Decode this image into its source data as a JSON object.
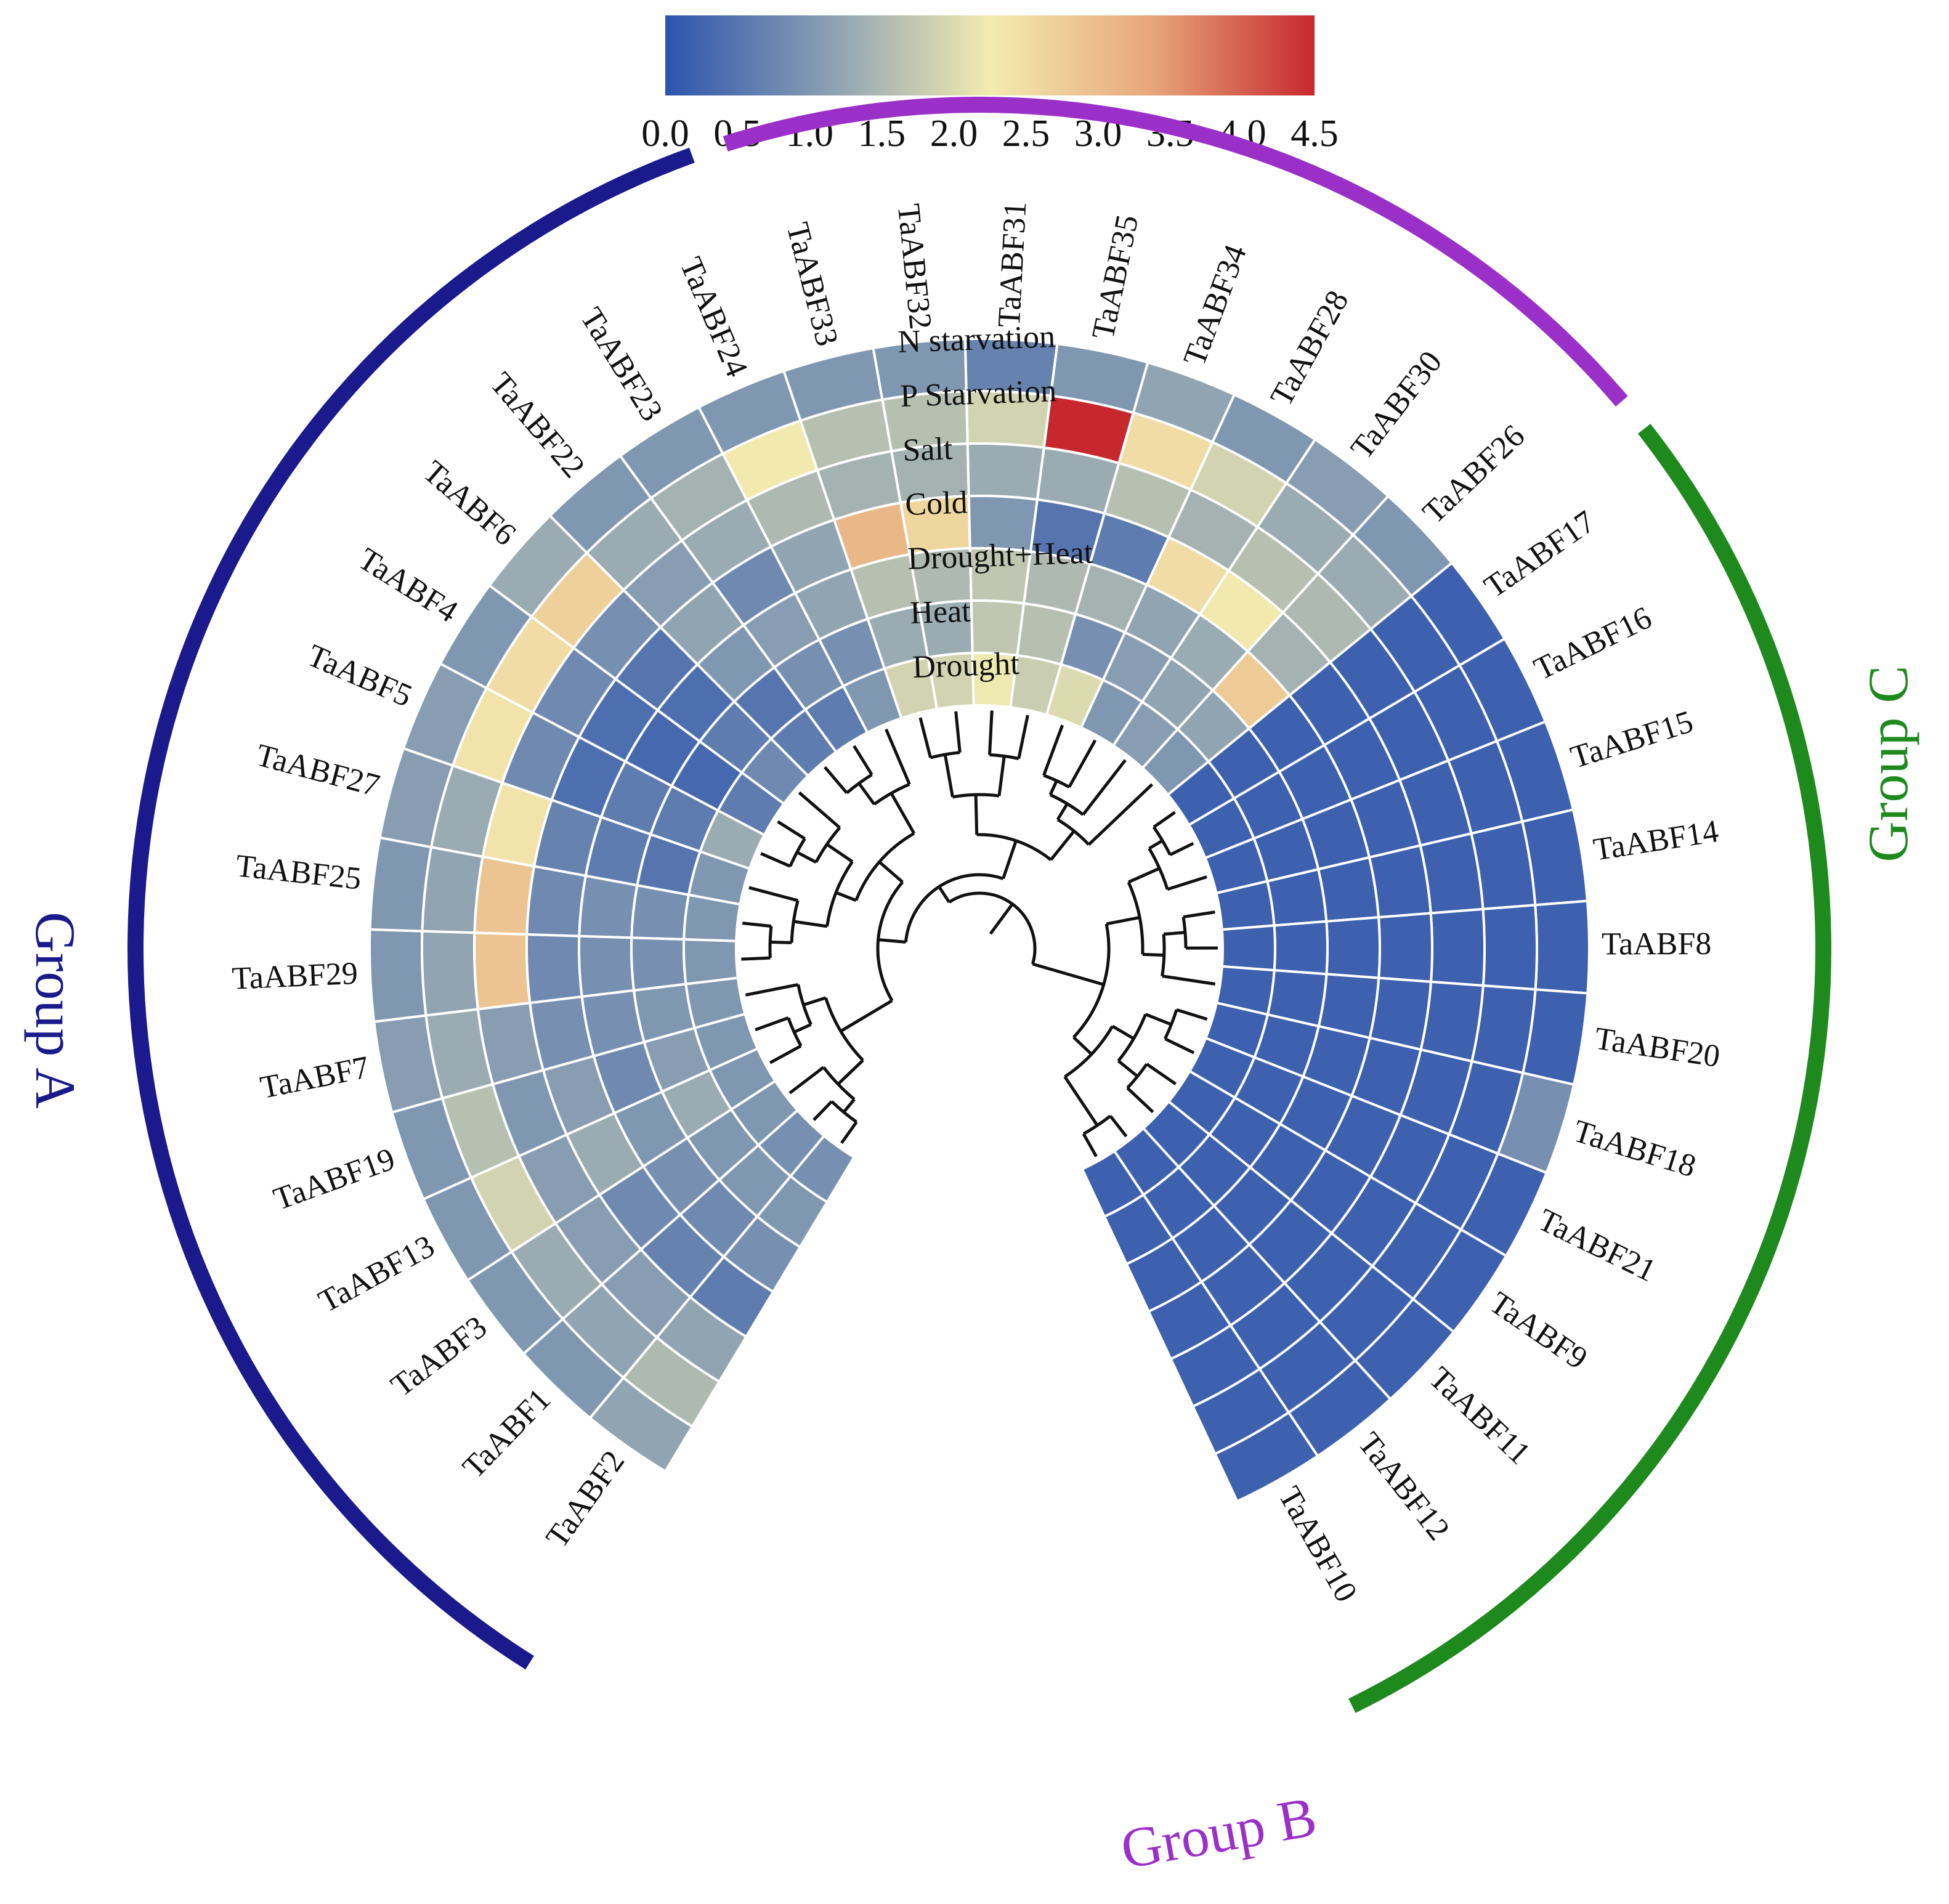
{
  "chart_data": {
    "type": "heatmap",
    "layout": "circular",
    "colorbar": {
      "min": 0.0,
      "max": 4.5,
      "ticks": [
        "0.0",
        "0.5",
        "1.0",
        "1.5",
        "2.0",
        "2.5",
        "3.0",
        "3.5",
        "4.0",
        "4.5"
      ],
      "colors": [
        "#2c54ad",
        "#8a9fb2",
        "#f3ecb0",
        "#e7a67a",
        "#c7282e"
      ]
    },
    "conditions": [
      "N starvation",
      "P Starvation",
      "Salt",
      "Cold",
      "Drought+Heat",
      "Heat",
      "Drought"
    ],
    "genes": [
      {
        "name": "TaABF2",
        "group": "A",
        "values": [
          1.2,
          1.5,
          1.2,
          0.6,
          0.9,
          1.0,
          0.9
        ]
      },
      {
        "name": "TaABF1",
        "group": "A",
        "values": [
          1.0,
          1.2,
          1.1,
          0.7,
          0.8,
          1.0,
          0.9
        ]
      },
      {
        "name": "TaABF3",
        "group": "A",
        "values": [
          1.0,
          1.3,
          1.1,
          0.8,
          0.9,
          1.0,
          1.0
        ]
      },
      {
        "name": "TaABF13",
        "group": "A",
        "values": [
          1.0,
          1.9,
          1.1,
          1.3,
          1.0,
          1.3,
          1.0
        ]
      },
      {
        "name": "TaABF19",
        "group": "A",
        "values": [
          1.0,
          1.6,
          1.0,
          1.1,
          0.8,
          1.1,
          1.0
        ]
      },
      {
        "name": "TaABF7",
        "group": "A",
        "values": [
          1.1,
          1.3,
          1.1,
          0.9,
          0.9,
          1.0,
          1.0
        ]
      },
      {
        "name": "TaABF29",
        "group": "A",
        "values": [
          1.0,
          1.2,
          2.9,
          0.8,
          0.9,
          0.9,
          1.0
        ]
      },
      {
        "name": "TaABF25",
        "group": "A",
        "values": [
          1.0,
          1.2,
          2.9,
          0.8,
          0.9,
          0.9,
          1.0
        ]
      },
      {
        "name": "TaABF27",
        "group": "A",
        "values": [
          1.1,
          1.3,
          2.4,
          0.7,
          0.6,
          0.5,
          1.0
        ]
      },
      {
        "name": "TaABF5",
        "group": "A",
        "values": [
          1.1,
          2.4,
          0.8,
          0.4,
          0.6,
          0.6,
          1.3
        ]
      },
      {
        "name": "TaABF4",
        "group": "A",
        "values": [
          1.0,
          2.5,
          0.8,
          0.4,
          0.3,
          0.3,
          0.6
        ]
      },
      {
        "name": "TaABF6",
        "group": "A",
        "values": [
          1.3,
          2.7,
          0.9,
          0.5,
          0.4,
          0.6,
          0.8
        ]
      },
      {
        "name": "TaABF22",
        "group": "A",
        "values": [
          1.0,
          1.3,
          1.1,
          1.2,
          1.0,
          0.5,
          0.6
        ]
      },
      {
        "name": "TaABF23",
        "group": "A",
        "values": [
          1.0,
          1.4,
          1.3,
          0.8,
          1.1,
          0.9,
          0.6
        ]
      },
      {
        "name": "TaABF24",
        "group": "A",
        "values": [
          1.0,
          2.3,
          1.5,
          1.2,
          1.2,
          0.9,
          1.0
        ]
      },
      {
        "name": "TaABF33",
        "group": "B",
        "values": [
          1.0,
          1.6,
          1.4,
          3.1,
          1.6,
          1.3,
          1.9
        ]
      },
      {
        "name": "TaABF32",
        "group": "B",
        "values": [
          1.0,
          1.6,
          1.4,
          2.6,
          1.5,
          1.3,
          1.9
        ]
      },
      {
        "name": "TaABF31",
        "group": "B",
        "values": [
          0.7,
          1.9,
          1.3,
          1.0,
          1.7,
          1.7,
          2.2
        ]
      },
      {
        "name": "TaABF35",
        "group": "B",
        "values": [
          1.0,
          4.5,
          1.3,
          0.5,
          1.5,
          1.6,
          1.8
        ]
      },
      {
        "name": "TaABF34",
        "group": "B",
        "values": [
          1.2,
          2.5,
          1.6,
          0.6,
          1.4,
          0.9,
          2.0
        ]
      },
      {
        "name": "TaABF28",
        "group": "B",
        "values": [
          1.0,
          1.9,
          1.4,
          2.5,
          1.2,
          1.1,
          1.0
        ]
      },
      {
        "name": "TaABF30",
        "group": "B",
        "values": [
          1.1,
          1.3,
          1.6,
          2.3,
          1.3,
          1.2,
          1.1
        ]
      },
      {
        "name": "TaABF26",
        "group": "B",
        "values": [
          1.0,
          1.3,
          1.5,
          1.4,
          2.8,
          1.2,
          1.0
        ]
      },
      {
        "name": "TaABF17",
        "group": "C",
        "values": [
          0.2,
          0.2,
          0.2,
          0.2,
          0.2,
          0.2,
          0.2
        ]
      },
      {
        "name": "TaABF16",
        "group": "C",
        "values": [
          0.2,
          0.2,
          0.2,
          0.2,
          0.2,
          0.2,
          0.2
        ]
      },
      {
        "name": "TaABF15",
        "group": "C",
        "values": [
          0.2,
          0.2,
          0.2,
          0.2,
          0.2,
          0.2,
          0.2
        ]
      },
      {
        "name": "TaABF14",
        "group": "C",
        "values": [
          0.2,
          0.2,
          0.2,
          0.2,
          0.2,
          0.2,
          0.2
        ]
      },
      {
        "name": "TaABF8",
        "group": "C",
        "values": [
          0.2,
          0.2,
          0.2,
          0.2,
          0.2,
          0.2,
          0.2
        ]
      },
      {
        "name": "TaABF20",
        "group": "C",
        "values": [
          0.2,
          0.2,
          0.2,
          0.2,
          0.2,
          0.2,
          0.2
        ]
      },
      {
        "name": "TaABF18",
        "group": "C",
        "values": [
          0.9,
          0.2,
          0.2,
          0.2,
          0.2,
          0.2,
          0.2
        ]
      },
      {
        "name": "TaABF21",
        "group": "C",
        "values": [
          0.2,
          0.2,
          0.2,
          0.2,
          0.2,
          0.2,
          0.2
        ]
      },
      {
        "name": "TaABF9",
        "group": "C",
        "values": [
          0.2,
          0.2,
          0.2,
          0.2,
          0.2,
          0.2,
          0.2
        ]
      },
      {
        "name": "TaABF11",
        "group": "C",
        "values": [
          0.2,
          0.2,
          0.2,
          0.2,
          0.2,
          0.2,
          0.2
        ]
      },
      {
        "name": "TaABF12",
        "group": "C",
        "values": [
          0.2,
          0.2,
          0.2,
          0.2,
          0.2,
          0.2,
          0.2
        ]
      },
      {
        "name": "TaABF10",
        "group": "C",
        "values": [
          0.2,
          0.2,
          0.2,
          0.2,
          0.2,
          0.2,
          0.2
        ]
      }
    ],
    "groups": [
      {
        "id": "A",
        "label": "Group A",
        "color": "#1a1a8c"
      },
      {
        "id": "B",
        "label": "Group B",
        "color": "#9b30c9"
      },
      {
        "id": "C",
        "label": "Group C",
        "color": "#1e8a1e"
      }
    ]
  }
}
